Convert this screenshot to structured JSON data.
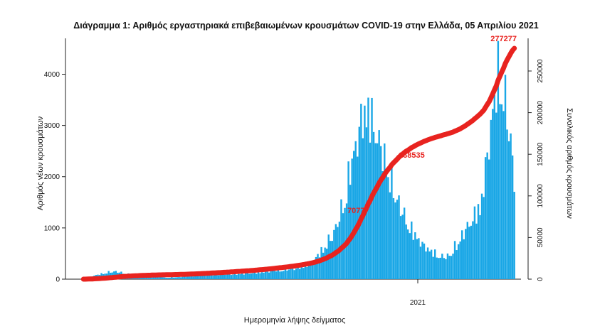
{
  "chart_data": {
    "type": "bar",
    "title": "Διάγραμμα 1: Αριθμός εργαστηριακά επιβεβαιωμένων κρουσμάτων COVID-19 στην Ελλάδα, 05 Απριλίου 2021",
    "xlabel": "Ημερομηνία λήψης δείγματος",
    "ylabel": "Αριθμός νέων κρουσμάτων",
    "y2label": "Συνολικός αριθμός κρουσμάτων",
    "x_tick_labels": [
      "2021"
    ],
    "yticks": [
      0,
      1000,
      2000,
      3000,
      4000
    ],
    "y2ticks": [
      0,
      50000,
      100000,
      150000,
      200000,
      250000
    ],
    "ylim": [
      0,
      4700
    ],
    "y2lim": [
      0,
      277277
    ],
    "bar_color": "#1aa7e6",
    "line_color": "#e8231f",
    "annotations": [
      {
        "text": "7077",
        "segment": 0
      },
      {
        "text": "138535",
        "segment": 1
      },
      {
        "text": "277277",
        "segment": 2
      }
    ],
    "waves": [
      {
        "from": 0,
        "to": 45,
        "values": [
          10,
          60,
          100,
          140,
          160,
          120,
          90,
          70,
          60,
          50,
          40
        ]
      },
      {
        "from": 45,
        "to": 120,
        "values": [
          30,
          40,
          60,
          80,
          90,
          100,
          110,
          120,
          150,
          180,
          200,
          240
        ]
      },
      {
        "from": 120,
        "to": 165,
        "values": [
          250,
          300,
          400,
          600,
          800,
          1100,
          1600,
          2400,
          3050,
          3600,
          3200,
          2700
        ]
      },
      {
        "from": 165,
        "to": 200,
        "values": [
          2700,
          2300,
          1800,
          1400,
          1100,
          900,
          700,
          600,
          500,
          450
        ]
      },
      {
        "from": 200,
        "to": 220,
        "values": [
          450,
          500,
          700,
          900,
          1100,
          1300,
          1500
        ]
      },
      {
        "from": 220,
        "to": 240,
        "values": [
          1500,
          2000,
          2700,
          3400,
          4000,
          4400,
          3800,
          3200,
          2600,
          1700
        ]
      }
    ],
    "total_days": 240
  }
}
